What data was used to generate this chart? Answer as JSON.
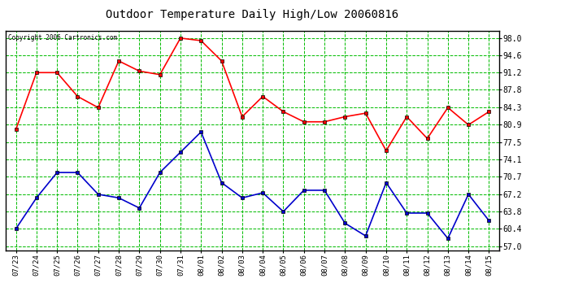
{
  "title": "Outdoor Temperature Daily High/Low 20060816",
  "copyright_text": "Copyright 2006 Cartronics.com",
  "dates": [
    "07/23",
    "07/24",
    "07/25",
    "07/26",
    "07/27",
    "07/28",
    "07/29",
    "07/30",
    "07/31",
    "08/01",
    "08/02",
    "08/03",
    "08/04",
    "08/05",
    "08/06",
    "08/07",
    "08/08",
    "08/09",
    "08/10",
    "08/11",
    "08/12",
    "08/13",
    "08/14",
    "08/15"
  ],
  "highs": [
    80.0,
    91.2,
    91.2,
    86.5,
    84.3,
    93.5,
    91.5,
    90.8,
    98.0,
    97.5,
    93.5,
    82.5,
    86.5,
    83.5,
    81.5,
    81.5,
    82.5,
    83.2,
    75.8,
    82.5,
    78.2,
    84.3,
    80.9,
    83.5
  ],
  "lows": [
    60.4,
    66.5,
    71.5,
    71.5,
    67.2,
    66.5,
    64.5,
    71.5,
    75.5,
    79.5,
    69.5,
    66.5,
    67.5,
    63.8,
    68.0,
    68.0,
    61.5,
    59.0,
    69.5,
    63.5,
    63.5,
    58.5,
    67.2,
    62.0
  ],
  "high_color": "#ff0000",
  "low_color": "#0000cc",
  "bg_color": "#ffffff",
  "plot_bg_color": "#ffffff",
  "grid_color": "#00bb00",
  "title_color": "#000000",
  "copyright_color": "#000000",
  "yticks": [
    57.0,
    60.4,
    63.8,
    67.2,
    70.7,
    74.1,
    77.5,
    80.9,
    84.3,
    87.8,
    91.2,
    94.6,
    98.0
  ],
  "ymin": 56.2,
  "ymax": 99.5,
  "marker": "s",
  "markersize": 3,
  "linewidth": 1.2
}
